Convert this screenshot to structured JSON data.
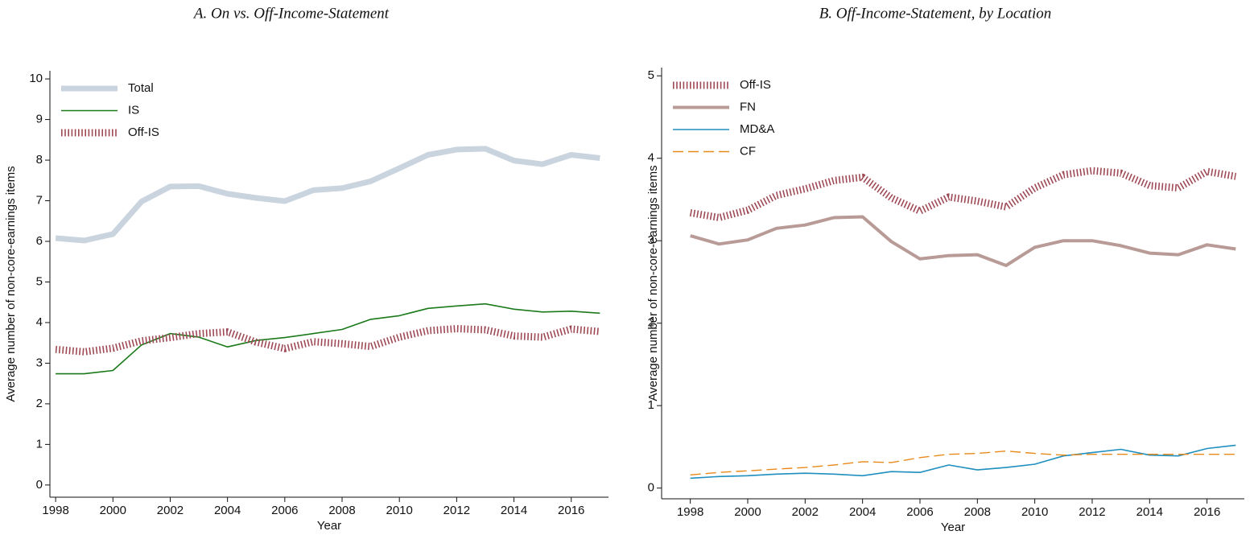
{
  "chart_data": [
    {
      "type": "line",
      "title": "A. On vs. Off-Income-Statement",
      "x_label": "Year",
      "y_label": "Average number of non-core-earnings items",
      "x": [
        1998,
        1999,
        2000,
        2001,
        2002,
        2003,
        2004,
        2005,
        2006,
        2007,
        2008,
        2009,
        2010,
        2011,
        2012,
        2013,
        2014,
        2015,
        2016,
        2017
      ],
      "xlim": [
        1997.8,
        2017.3
      ],
      "xticks": [
        1998,
        2000,
        2002,
        2004,
        2006,
        2008,
        2010,
        2012,
        2014,
        2016
      ],
      "ylim": [
        -0.3,
        10.2
      ],
      "yticks": [
        0,
        1,
        2,
        3,
        4,
        5,
        6,
        7,
        8,
        9,
        10
      ],
      "legend": "top-left",
      "series": [
        {
          "name": "Total",
          "color": "#c9d4df",
          "style": "thick",
          "values": [
            6.08,
            6.02,
            6.18,
            6.98,
            7.35,
            7.36,
            7.17,
            7.07,
            6.99,
            7.26,
            7.31,
            7.48,
            7.8,
            8.13,
            8.26,
            8.28,
            7.99,
            7.9,
            8.13,
            8.05
          ]
        },
        {
          "name": "IS",
          "color": "#1a7a1a",
          "style": "solid",
          "values": [
            2.74,
            2.74,
            2.82,
            3.45,
            3.73,
            3.64,
            3.4,
            3.56,
            3.63,
            3.73,
            3.83,
            4.08,
            4.17,
            4.35,
            4.41,
            4.46,
            4.33,
            4.26,
            4.28,
            4.23
          ]
        },
        {
          "name": "Off-IS",
          "color": "#9e4a55",
          "style": "dotted",
          "values": [
            3.34,
            3.28,
            3.37,
            3.55,
            3.63,
            3.73,
            3.77,
            3.52,
            3.36,
            3.53,
            3.48,
            3.41,
            3.64,
            3.8,
            3.85,
            3.82,
            3.67,
            3.64,
            3.84,
            3.78
          ]
        }
      ]
    },
    {
      "type": "line",
      "title": "B. Off-Income-Statement, by Location",
      "x_label": "Year",
      "y_label": "Average number of non-core-earnings items",
      "x": [
        1998,
        1999,
        2000,
        2001,
        2002,
        2003,
        2004,
        2005,
        2006,
        2007,
        2008,
        2009,
        2010,
        2011,
        2012,
        2013,
        2014,
        2015,
        2016,
        2017
      ],
      "xlim": [
        1997.0,
        2017.3
      ],
      "xticks": [
        1998,
        2000,
        2002,
        2004,
        2006,
        2008,
        2010,
        2012,
        2014,
        2016
      ],
      "ylim": [
        -0.13,
        5.1
      ],
      "yticks": [
        0,
        1,
        2,
        3,
        4,
        5
      ],
      "legend": "top-left",
      "series": [
        {
          "name": "Off-IS",
          "color": "#9e4a55",
          "style": "dotted",
          "values": [
            3.34,
            3.28,
            3.37,
            3.55,
            3.63,
            3.73,
            3.77,
            3.52,
            3.36,
            3.53,
            3.48,
            3.41,
            3.64,
            3.8,
            3.85,
            3.82,
            3.67,
            3.64,
            3.84,
            3.78
          ]
        },
        {
          "name": "FN",
          "color": "#b89a96",
          "style": "medium",
          "values": [
            3.06,
            2.96,
            3.01,
            3.15,
            3.19,
            3.28,
            3.29,
            2.99,
            2.78,
            2.82,
            2.83,
            2.7,
            2.92,
            3.0,
            3.0,
            2.94,
            2.85,
            2.83,
            2.95,
            2.9
          ]
        },
        {
          "name": "MD&A",
          "color": "#1f8fbf",
          "style": "solid",
          "values": [
            0.12,
            0.14,
            0.15,
            0.17,
            0.18,
            0.17,
            0.15,
            0.2,
            0.19,
            0.28,
            0.22,
            0.25,
            0.29,
            0.39,
            0.43,
            0.47,
            0.4,
            0.39,
            0.48,
            0.52
          ]
        },
        {
          "name": "CF",
          "color": "#e88a1a",
          "style": "dashed",
          "values": [
            0.16,
            0.19,
            0.21,
            0.23,
            0.25,
            0.28,
            0.32,
            0.31,
            0.37,
            0.41,
            0.42,
            0.45,
            0.42,
            0.4,
            0.41,
            0.41,
            0.41,
            0.41,
            0.41,
            0.41
          ]
        }
      ]
    }
  ]
}
